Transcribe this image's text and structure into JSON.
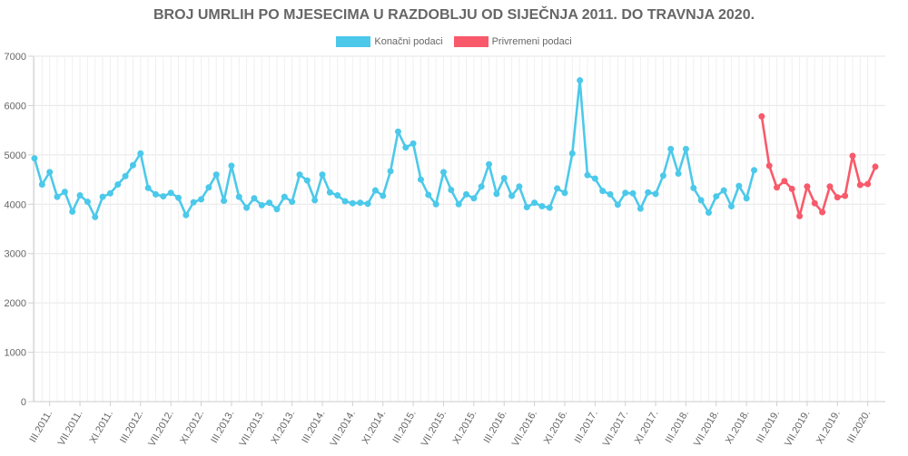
{
  "chart_data": {
    "type": "line",
    "title": "BROJ UMRLIH PO MJESECIMA U RAZDOBLJU OD SIJEČNJA 2011. DO TRAVNJA 2020.",
    "ylim": [
      0,
      7000
    ],
    "yticks": [
      0,
      1000,
      2000,
      3000,
      4000,
      5000,
      6000,
      7000
    ],
    "grid": true,
    "legend_position": "top",
    "x_tick_labels": [
      "III.2011.",
      "VII.2011.",
      "XI.2011.",
      "III.2012.",
      "VII.2012.",
      "XI.2012.",
      "III.2013.",
      "VII.2013.",
      "XI.2013.",
      "III.2014.",
      "VII.2014.",
      "XI.2014.",
      "III.2015.",
      "VII.2015.",
      "XI.2015.",
      "III.2016.",
      "VII.2016.",
      "XI.2016.",
      "III.2017.",
      "VII.2017.",
      "XI.2017.",
      "III.2018.",
      "VII.2018.",
      "XI.2018.",
      "III.2019.",
      "VII.2019.",
      "XI.2019.",
      "III.2020."
    ],
    "series": [
      {
        "name": "Konačni podaci",
        "color": "#4cc9ea",
        "start_month": "I.2011.",
        "values": [
          4930,
          4400,
          4650,
          4150,
          4250,
          3850,
          4180,
          4050,
          3740,
          4150,
          4220,
          4400,
          4570,
          4790,
          5030,
          4330,
          4200,
          4160,
          4230,
          4130,
          3780,
          4040,
          4100,
          4340,
          4600,
          4070,
          4780,
          4150,
          3930,
          4120,
          3980,
          4030,
          3900,
          4150,
          4050,
          4600,
          4480,
          4080,
          4600,
          4240,
          4180,
          4060,
          4020,
          4030,
          4010,
          4280,
          4170,
          4670,
          5470,
          5150,
          5230,
          4500,
          4190,
          4000,
          4650,
          4290,
          4000,
          4200,
          4120,
          4360,
          4810,
          4210,
          4530,
          4170,
          4360,
          3940,
          4030,
          3960,
          3930,
          4320,
          4230,
          5030,
          6510,
          4590,
          4520,
          4270,
          4200,
          3990,
          4230,
          4220,
          3910,
          4240,
          4210,
          4580,
          5120,
          4620,
          5120,
          4330,
          4080,
          3830,
          4160,
          4280,
          3960,
          4370,
          4120,
          4690
        ]
      },
      {
        "name": "Privremeni podaci",
        "color": "#f85a6b",
        "start_month": "I.2019.",
        "values": [
          5780,
          4780,
          4340,
          4470,
          4310,
          3760,
          4360,
          4020,
          3840,
          4360,
          4140,
          4170,
          4980,
          4390,
          4410,
          4760
        ]
      }
    ]
  }
}
